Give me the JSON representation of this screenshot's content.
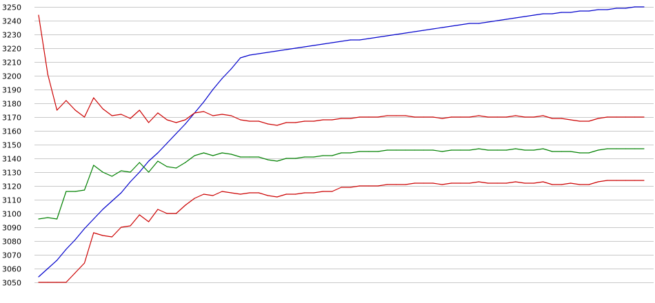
{
  "chart_data": {
    "type": "line",
    "title": "",
    "xlabel": "",
    "ylabel": "",
    "ylim": [
      3050,
      3250
    ],
    "yticks": [
      3050,
      3060,
      3070,
      3080,
      3090,
      3100,
      3110,
      3120,
      3130,
      3140,
      3150,
      3160,
      3170,
      3180,
      3190,
      3200,
      3210,
      3220,
      3230,
      3240,
      3250
    ],
    "grid": true,
    "legend": "none",
    "x": [
      0,
      1,
      2,
      3,
      4,
      5,
      6,
      7,
      8,
      9,
      10,
      11,
      12,
      13,
      14,
      15,
      16,
      17,
      18,
      19,
      20,
      21,
      22,
      23,
      24,
      25,
      26,
      27,
      28,
      29,
      30,
      31,
      32,
      33,
      34,
      35,
      36,
      37,
      38,
      39,
      40,
      41,
      42,
      43,
      44,
      45,
      46,
      47,
      48,
      49,
      50,
      51,
      52,
      53,
      54,
      55,
      56,
      57,
      58,
      59,
      60,
      61,
      62,
      63,
      64,
      65,
      66
    ],
    "series": [
      {
        "color": "#0000cc",
        "values": [
          3054,
          3060,
          3066,
          3074,
          3081,
          3089,
          3096,
          3103,
          3109,
          3115,
          3123,
          3130,
          3138,
          3144,
          3151,
          3158,
          3165,
          3173,
          3181,
          3190,
          3198,
          3205,
          3213,
          3215,
          3216,
          3217,
          3218,
          3219,
          3220,
          3221,
          3222,
          3223,
          3224,
          3225,
          3226,
          3226,
          3227,
          3228,
          3229,
          3230,
          3231,
          3232,
          3233,
          3234,
          3235,
          3236,
          3237,
          3238,
          3238,
          3239,
          3240,
          3241,
          3242,
          3243,
          3244,
          3245,
          3245,
          3246,
          3246,
          3247,
          3247,
          3248,
          3248,
          3249,
          3249,
          3250,
          3250
        ]
      },
      {
        "color": "#cc0000",
        "values": [
          3244,
          3201,
          3175,
          3182,
          3175,
          3170,
          3184,
          3176,
          3171,
          3172,
          3169,
          3175,
          3166,
          3173,
          3168,
          3166,
          3168,
          3173,
          3174,
          3171,
          3172,
          3171,
          3168,
          3167,
          3167,
          3165,
          3164,
          3166,
          3166,
          3167,
          3167,
          3168,
          3168,
          3169,
          3169,
          3170,
          3170,
          3170,
          3171,
          3171,
          3171,
          3170,
          3170,
          3170,
          3169,
          3170,
          3170,
          3170,
          3171,
          3170,
          3170,
          3170,
          3171,
          3170,
          3170,
          3171,
          3169,
          3169,
          3168,
          3167,
          3167,
          3169,
          3170,
          3170,
          3170,
          3170,
          3170
        ]
      },
      {
        "color": "#008000",
        "values": [
          3096,
          3097,
          3096,
          3116,
          3116,
          3117,
          3135,
          3130,
          3127,
          3131,
          3130,
          3137,
          3130,
          3138,
          3134,
          3133,
          3137,
          3142,
          3144,
          3142,
          3144,
          3143,
          3141,
          3141,
          3141,
          3139,
          3138,
          3140,
          3140,
          3141,
          3141,
          3142,
          3142,
          3144,
          3144,
          3145,
          3145,
          3145,
          3146,
          3146,
          3146,
          3146,
          3146,
          3146,
          3145,
          3146,
          3146,
          3146,
          3147,
          3146,
          3146,
          3146,
          3147,
          3146,
          3146,
          3147,
          3145,
          3145,
          3145,
          3144,
          3144,
          3146,
          3147,
          3147,
          3147,
          3147,
          3147
        ]
      },
      {
        "color": "#cc0000",
        "values": [
          3050,
          3050,
          3050,
          3050,
          3057,
          3064,
          3086,
          3084,
          3083,
          3090,
          3091,
          3099,
          3094,
          3103,
          3100,
          3100,
          3106,
          3111,
          3114,
          3113,
          3116,
          3115,
          3114,
          3115,
          3115,
          3113,
          3112,
          3114,
          3114,
          3115,
          3115,
          3116,
          3116,
          3119,
          3119,
          3120,
          3120,
          3120,
          3121,
          3121,
          3121,
          3122,
          3122,
          3122,
          3121,
          3122,
          3122,
          3122,
          3123,
          3122,
          3122,
          3122,
          3123,
          3122,
          3122,
          3123,
          3121,
          3121,
          3122,
          3121,
          3121,
          3123,
          3124,
          3124,
          3124,
          3124,
          3124
        ]
      }
    ]
  }
}
